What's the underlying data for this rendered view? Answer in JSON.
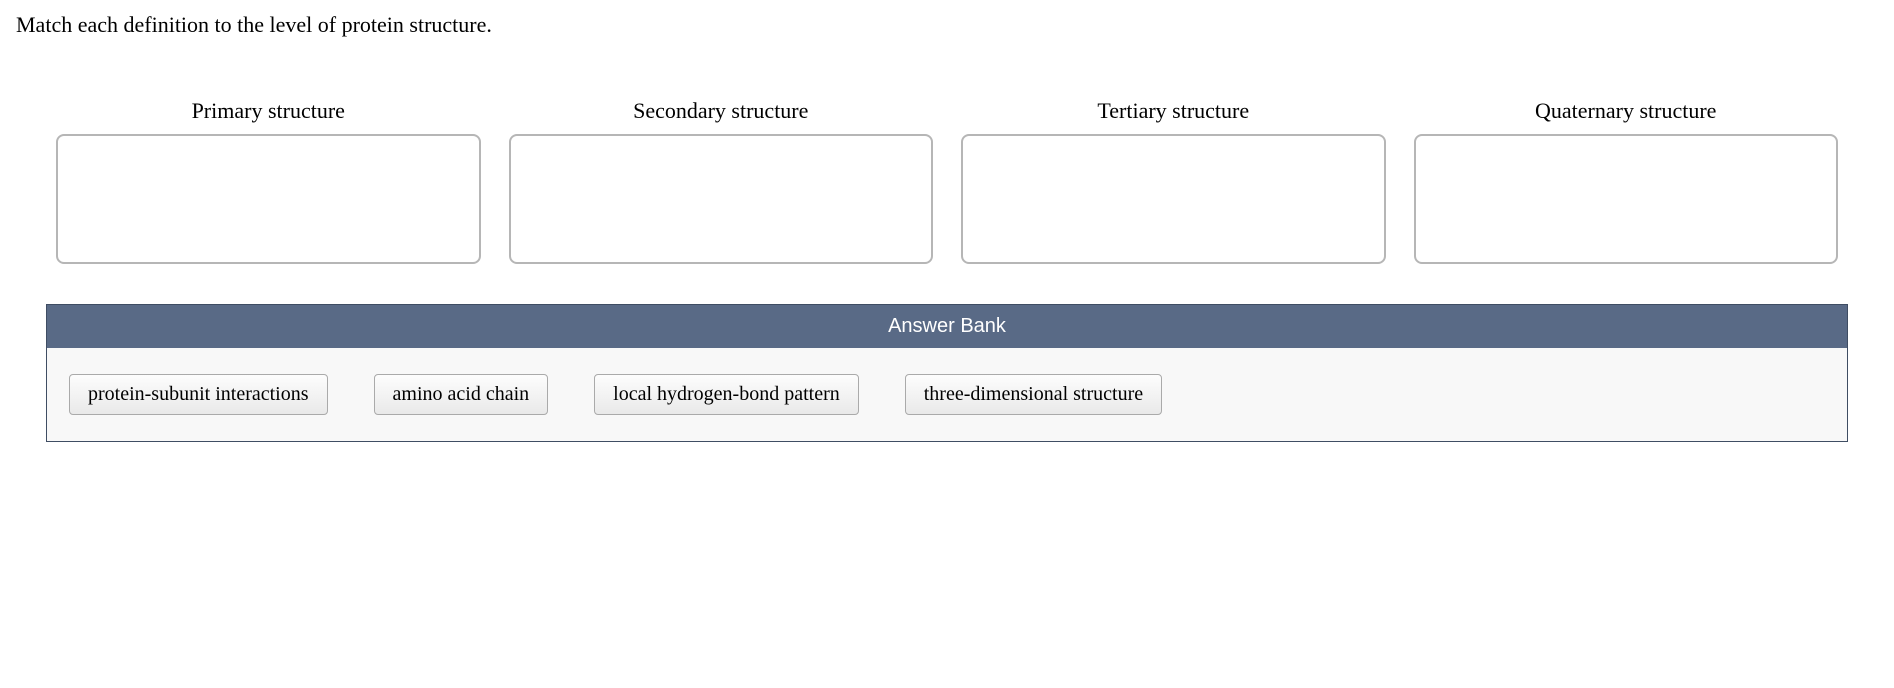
{
  "prompt": "Match each definition to the level of protein structure.",
  "dropzones": [
    {
      "label": "Primary structure"
    },
    {
      "label": "Secondary structure"
    },
    {
      "label": "Tertiary structure"
    },
    {
      "label": "Quaternary structure"
    }
  ],
  "answer_bank": {
    "title": "Answer Bank",
    "items": [
      "protein-subunit interactions",
      "amino acid chain",
      "local hydrogen-bond pattern",
      "three-dimensional structure"
    ]
  }
}
